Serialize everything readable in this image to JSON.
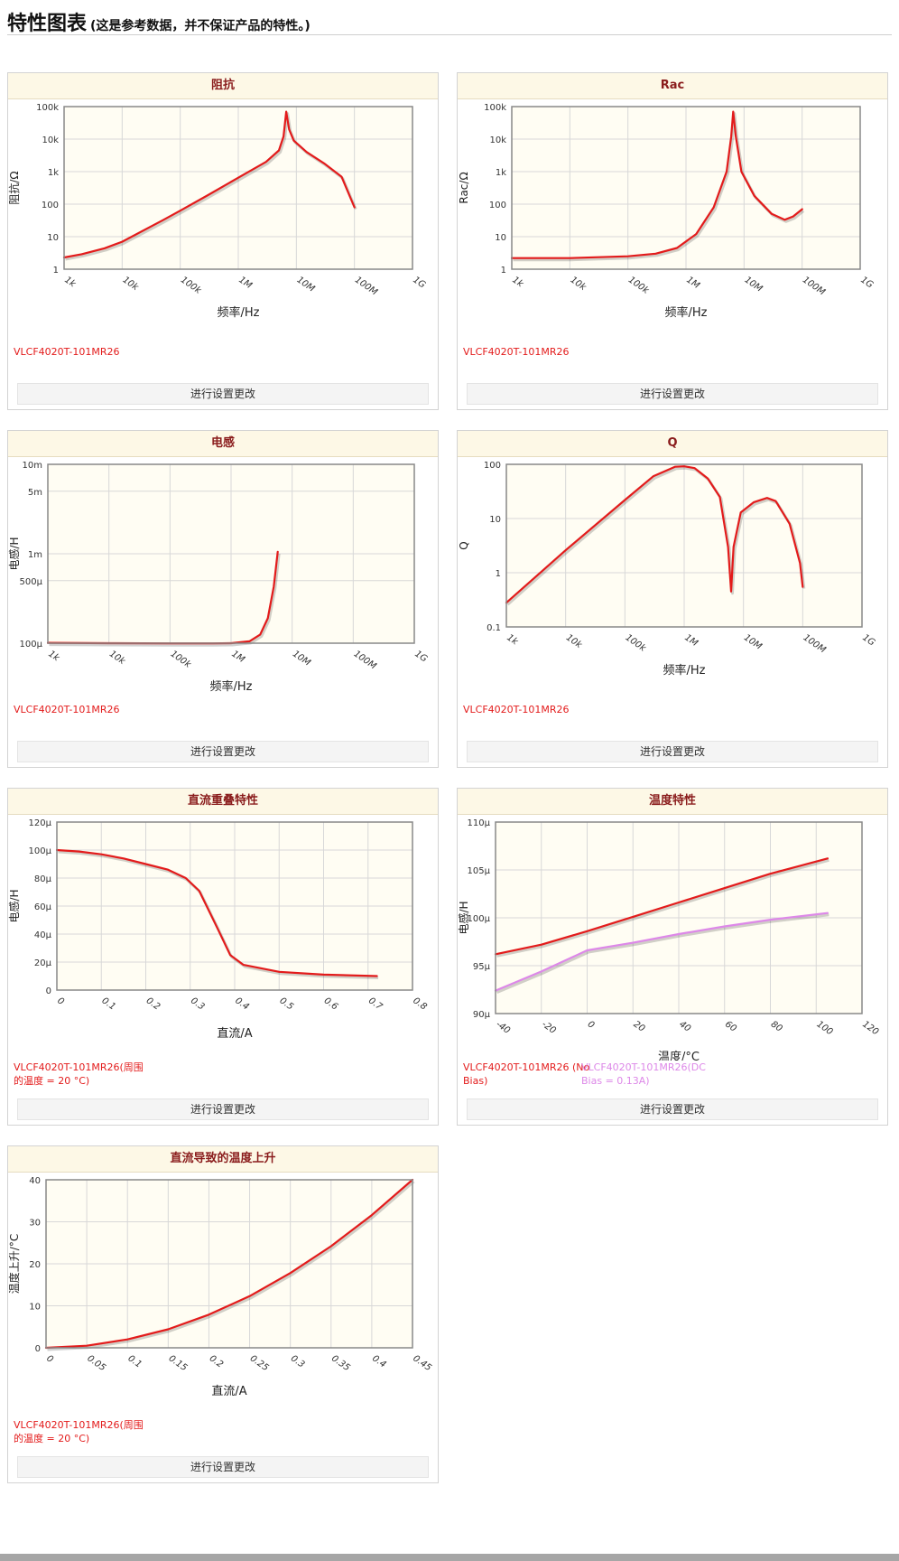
{
  "page": {
    "title": "特性图表",
    "subtitle": "(这是参考数据，并不保证产品的特性。)"
  },
  "settings_label": "进行设置更改",
  "colors": {
    "series_red": "#e31b1b",
    "series_violet": "#dd88e8",
    "plot_bg": "#fffdf3",
    "grid": "#d8d8d8",
    "frame": "#888888"
  },
  "chart_data": [
    {
      "id": "impedance",
      "title": "阻抗",
      "type": "line",
      "xscale": "log",
      "yscale": "log",
      "xlim": [
        1000,
        1000000000
      ],
      "ylim": [
        1,
        100000
      ],
      "xticks": [
        1000,
        10000,
        100000,
        1000000,
        10000000,
        100000000,
        1000000000
      ],
      "xticklabels": [
        "1k",
        "10k",
        "100k",
        "1M",
        "10M",
        "100M",
        "1G"
      ],
      "yticks": [
        1,
        10,
        100,
        1000,
        10000,
        100000
      ],
      "yticklabels": [
        "1",
        "10",
        "100",
        "1k",
        "10k",
        "100k"
      ],
      "xlabel": "频率/Hz",
      "ylabel": "阻抗/Ω",
      "series": [
        {
          "name": "VLCF4020T-101MR26",
          "color": "#e31b1b",
          "points": [
            [
              1000,
              2.3
            ],
            [
              2000,
              2.9
            ],
            [
              5000,
              4.4
            ],
            [
              10000,
              7.0
            ],
            [
              50000,
              32
            ],
            [
              100000,
              63
            ],
            [
              300000,
              190
            ],
            [
              1000000,
              650
            ],
            [
              3000000,
              2000
            ],
            [
              5000000,
              4500
            ],
            [
              6000000,
              12000
            ],
            [
              6700000,
              70000
            ],
            [
              7500000,
              20000
            ],
            [
              9000000,
              9000
            ],
            [
              15000000,
              4000
            ],
            [
              30000000,
              1800
            ],
            [
              60000000,
              700
            ],
            [
              100000000,
              80
            ]
          ]
        }
      ]
    },
    {
      "id": "rac",
      "title": "Rac",
      "type": "line",
      "xscale": "log",
      "yscale": "log",
      "xlim": [
        1000,
        1000000000
      ],
      "ylim": [
        1,
        100000
      ],
      "xticks": [
        1000,
        10000,
        100000,
        1000000,
        10000000,
        100000000,
        1000000000
      ],
      "xticklabels": [
        "1k",
        "10k",
        "100k",
        "1M",
        "10M",
        "100M",
        "1G"
      ],
      "yticks": [
        1,
        10,
        100,
        1000,
        10000,
        100000
      ],
      "yticklabels": [
        "1",
        "10",
        "100",
        "1k",
        "10k",
        "100k"
      ],
      "xlabel": "频率/Hz",
      "ylabel": "Rac/Ω",
      "series": [
        {
          "name": "VLCF4020T-101MR26",
          "color": "#e31b1b",
          "points": [
            [
              1000,
              2.2
            ],
            [
              10000,
              2.2
            ],
            [
              100000,
              2.5
            ],
            [
              300000,
              3.0
            ],
            [
              700000,
              4.5
            ],
            [
              1500000,
              12
            ],
            [
              3000000,
              80
            ],
            [
              5000000,
              1000
            ],
            [
              6000000,
              12000
            ],
            [
              6500000,
              70000
            ],
            [
              7200000,
              12000
            ],
            [
              9000000,
              1000
            ],
            [
              15000000,
              180
            ],
            [
              30000000,
              50
            ],
            [
              50000000,
              33
            ],
            [
              70000000,
              42
            ],
            [
              100000000,
              70
            ]
          ]
        }
      ]
    },
    {
      "id": "inductance",
      "title": "电感",
      "type": "line",
      "xscale": "log",
      "yscale": "log",
      "xlim": [
        1000,
        1000000000
      ],
      "ylim": [
        0.0001,
        0.01
      ],
      "xticks": [
        1000,
        10000,
        100000,
        1000000,
        10000000,
        100000000,
        1000000000
      ],
      "xticklabels": [
        "1k",
        "10k",
        "100k",
        "1M",
        "10M",
        "100M",
        "1G"
      ],
      "yticks": [
        0.0001,
        0.0005,
        0.001,
        0.005,
        0.01
      ],
      "yticklabels": [
        "100μ",
        "500μ",
        "1m",
        "5m",
        "10m"
      ],
      "xlabel": "频率/Hz",
      "ylabel": "电感/H",
      "series": [
        {
          "name": "VLCF4020T-101MR26",
          "color": "#e31b1b",
          "points": [
            [
              1000,
              0.000101
            ],
            [
              10000,
              0.0001
            ],
            [
              100000,
              9.95e-05
            ],
            [
              500000,
              9.95e-05
            ],
            [
              1000000,
              0.0001
            ],
            [
              2000000,
              0.000105
            ],
            [
              3000000,
              0.000125
            ],
            [
              4000000,
              0.00019
            ],
            [
              5000000,
              0.00043
            ],
            [
              5800000,
              0.00105
            ]
          ]
        }
      ]
    },
    {
      "id": "q",
      "title": "Q",
      "type": "line",
      "xscale": "log",
      "yscale": "log",
      "xlim": [
        1000,
        1000000000
      ],
      "ylim": [
        0.1,
        100
      ],
      "xticks": [
        1000,
        10000,
        100000,
        1000000,
        10000000,
        100000000,
        1000000000
      ],
      "xticklabels": [
        "1k",
        "10k",
        "100k",
        "1M",
        "10M",
        "100M",
        "1G"
      ],
      "yticks": [
        0.1,
        1,
        10,
        100
      ],
      "yticklabels": [
        "0.1",
        "1",
        "10",
        "100"
      ],
      "xlabel": "频率/Hz",
      "ylabel": "Q",
      "series": [
        {
          "name": "VLCF4020T-101MR26",
          "color": "#e31b1b",
          "points": [
            [
              1000,
              0.28
            ],
            [
              10000,
              2.6
            ],
            [
              100000,
              22
            ],
            [
              300000,
              60
            ],
            [
              700000,
              90
            ],
            [
              1000000,
              92
            ],
            [
              1500000,
              85
            ],
            [
              2500000,
              55
            ],
            [
              4000000,
              25
            ],
            [
              5500000,
              3
            ],
            [
              6200000,
              0.45
            ],
            [
              6800000,
              3
            ],
            [
              9000000,
              13
            ],
            [
              15000000,
              20
            ],
            [
              25000000,
              24
            ],
            [
              35000000,
              21
            ],
            [
              60000000,
              8
            ],
            [
              90000000,
              1.5
            ],
            [
              100000000,
              0.55
            ]
          ]
        }
      ]
    },
    {
      "id": "dc-bias",
      "title": "直流重叠特性",
      "type": "line",
      "xscale": "linear",
      "yscale": "linear",
      "xlim": [
        0,
        0.8
      ],
      "ylim": [
        0,
        0.00012
      ],
      "xticks": [
        0,
        0.1,
        0.2,
        0.3,
        0.4,
        0.5,
        0.6,
        0.7,
        0.8
      ],
      "xticklabels": [
        "0",
        "0.1",
        "0.2",
        "0.3",
        "0.4",
        "0.5",
        "0.6",
        "0.7",
        "0.8"
      ],
      "yticks": [
        0,
        2e-05,
        4e-05,
        6e-05,
        8e-05,
        0.0001,
        0.00012
      ],
      "yticklabels": [
        "0",
        "20μ",
        "40μ",
        "60μ",
        "80μ",
        "100μ",
        "120μ"
      ],
      "xlabel": "直流/A",
      "ylabel": "电感/H",
      "series": [
        {
          "name": "VLCF4020T-101MR26(周围的温度 = 20 °C)",
          "color": "#e31b1b",
          "points": [
            [
              0,
              0.0001
            ],
            [
              0.05,
              9.9e-05
            ],
            [
              0.1,
              9.7e-05
            ],
            [
              0.15,
              9.4e-05
            ],
            [
              0.2,
              9e-05
            ],
            [
              0.25,
              8.6e-05
            ],
            [
              0.29,
              8e-05
            ],
            [
              0.32,
              7.1e-05
            ],
            [
              0.36,
              4.5e-05
            ],
            [
              0.39,
              2.5e-05
            ],
            [
              0.42,
              1.8e-05
            ],
            [
              0.5,
              1.3e-05
            ],
            [
              0.6,
              1.1e-05
            ],
            [
              0.72,
              1e-05
            ]
          ]
        }
      ]
    },
    {
      "id": "temperature",
      "title": "温度特性",
      "type": "line",
      "xscale": "linear",
      "yscale": "linear",
      "xlim": [
        -40,
        120
      ],
      "ylim": [
        9e-05,
        0.00011
      ],
      "xticks": [
        -40,
        -20,
        0,
        20,
        40,
        60,
        80,
        100,
        120
      ],
      "xticklabels": [
        "-40",
        "-20",
        "0",
        "20",
        "40",
        "60",
        "80",
        "100",
        "120"
      ],
      "yticks": [
        9e-05,
        9.5e-05,
        0.0001,
        0.000105,
        0.00011
      ],
      "yticklabels": [
        "90μ",
        "95μ",
        "100μ",
        "105μ",
        "110μ"
      ],
      "xlabel": "温度/°C",
      "ylabel": "电感/H",
      "series": [
        {
          "name": "VLCF4020T-101MR26 (No Bias)",
          "color": "#e31b1b",
          "points": [
            [
              -40,
              9.62e-05
            ],
            [
              -20,
              9.72e-05
            ],
            [
              0,
              9.86e-05
            ],
            [
              20,
              0.0001001
            ],
            [
              40,
              0.0001016
            ],
            [
              60,
              0.0001031
            ],
            [
              80,
              0.0001046
            ],
            [
              105,
              0.0001062
            ]
          ]
        },
        {
          "name": "VLCF4020T-101MR26(DC Bias = 0.13A)",
          "color": "#dd88e8",
          "points": [
            [
              -40,
              9.24e-05
            ],
            [
              -20,
              9.44e-05
            ],
            [
              0,
              9.66e-05
            ],
            [
              20,
              9.74e-05
            ],
            [
              40,
              9.83e-05
            ],
            [
              60,
              9.91e-05
            ],
            [
              80,
              9.98e-05
            ],
            [
              105,
              0.0001005
            ]
          ]
        }
      ]
    },
    {
      "id": "temp-rise",
      "title": "直流导致的温度上升",
      "type": "line",
      "xscale": "linear",
      "yscale": "linear",
      "xlim": [
        0,
        0.45
      ],
      "ylim": [
        0,
        40
      ],
      "xticks": [
        0,
        0.05,
        0.1,
        0.15,
        0.2,
        0.25,
        0.3,
        0.35,
        0.4,
        0.45
      ],
      "xticklabels": [
        "0",
        "0.05",
        "0.1",
        "0.15",
        "0.2",
        "0.25",
        "0.3",
        "0.35",
        "0.4",
        "0.45"
      ],
      "yticks": [
        0,
        10,
        20,
        30,
        40
      ],
      "yticklabels": [
        "0",
        "10",
        "20",
        "30",
        "40"
      ],
      "xlabel": "直流/A",
      "ylabel": "温度上升/°C",
      "series": [
        {
          "name": "VLCF4020T-101MR26(周围的温度 = 20 °C)",
          "color": "#e31b1b",
          "points": [
            [
              0,
              0
            ],
            [
              0.05,
              0.5
            ],
            [
              0.1,
              2
            ],
            [
              0.15,
              4.4
            ],
            [
              0.2,
              7.9
            ],
            [
              0.25,
              12.3
            ],
            [
              0.3,
              17.8
            ],
            [
              0.35,
              24.2
            ],
            [
              0.4,
              31.6
            ],
            [
              0.45,
              40
            ]
          ]
        }
      ]
    }
  ]
}
